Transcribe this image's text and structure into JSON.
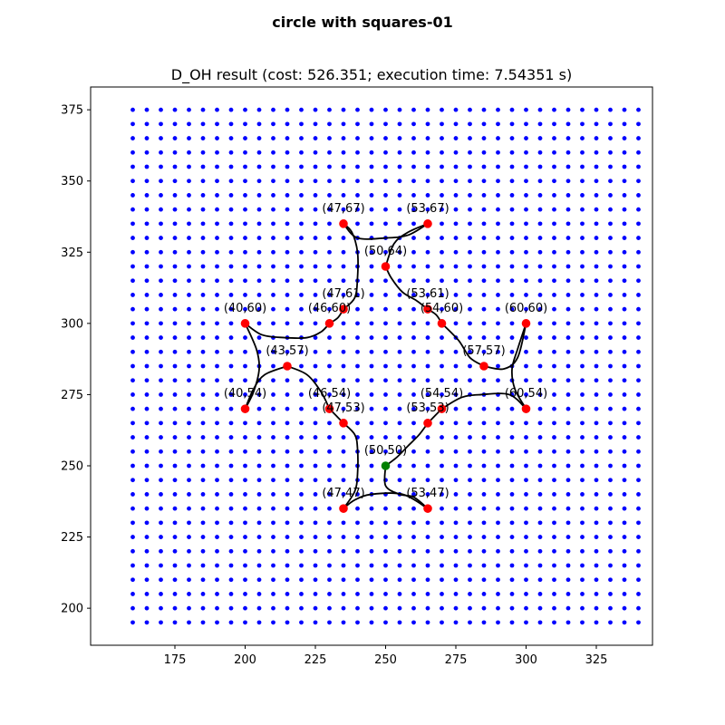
{
  "figure": {
    "suptitle": "circle with squares-01",
    "title": "D_OH result (cost: 526.351; execution time: 7.54351 s)"
  },
  "colors": {
    "grid_points": "#0000ff",
    "targets": "#ff0000",
    "start": "#008000",
    "path": "#000000",
    "axes": "#000000",
    "background": "#ffffff"
  },
  "chart_data": {
    "type": "scatter",
    "xlim": [
      145,
      345
    ],
    "ylim": [
      187,
      383
    ],
    "xticks": [
      175,
      200,
      225,
      250,
      275,
      300,
      325
    ],
    "yticks": [
      200,
      225,
      250,
      275,
      300,
      325,
      350,
      375
    ],
    "xtick_labels": [
      "175",
      "200",
      "225",
      "250",
      "275",
      "300",
      "325"
    ],
    "ytick_labels": [
      "200",
      "225",
      "250",
      "275",
      "300",
      "325",
      "350",
      "375"
    ],
    "grid_points": {
      "x_start": 160,
      "x_end": 340,
      "x_step": 5,
      "y_start": 195,
      "y_end": 375,
      "y_step": 5
    },
    "start_point": {
      "label": "(50,50)",
      "x": 250,
      "y": 250
    },
    "target_points": [
      {
        "label": "(47,67)",
        "x": 235,
        "y": 335
      },
      {
        "label": "(53,67)",
        "x": 265,
        "y": 335
      },
      {
        "label": "(50,64)",
        "x": 250,
        "y": 320
      },
      {
        "label": "(47,61)",
        "x": 235,
        "y": 305
      },
      {
        "label": "(46,60)",
        "x": 230,
        "y": 300
      },
      {
        "label": "(53,61)",
        "x": 265,
        "y": 305
      },
      {
        "label": "(54,60)",
        "x": 270,
        "y": 300
      },
      {
        "label": "(40,60)",
        "x": 200,
        "y": 300
      },
      {
        "label": "(60,60)",
        "x": 300,
        "y": 300
      },
      {
        "label": "(43,57)",
        "x": 215,
        "y": 285
      },
      {
        "label": "(57,57)",
        "x": 285,
        "y": 285
      },
      {
        "label": "(40,54)",
        "x": 200,
        "y": 270
      },
      {
        "label": "(46,54)",
        "x": 230,
        "y": 270
      },
      {
        "label": "(47,53)",
        "x": 235,
        "y": 265
      },
      {
        "label": "(53,53)",
        "x": 265,
        "y": 265
      },
      {
        "label": "(54,54)",
        "x": 270,
        "y": 270
      },
      {
        "label": "(60,54)",
        "x": 300,
        "y": 270
      },
      {
        "label": "(47,47)",
        "x": 235,
        "y": 235
      },
      {
        "label": "(53,47)",
        "x": 265,
        "y": 235
      }
    ],
    "path_segments": [
      [
        [
          250,
          250
        ],
        [
          250,
          243
        ],
        [
          255,
          240
        ],
        [
          260,
          239
        ],
        [
          265,
          235
        ]
      ],
      [
        [
          265,
          235
        ],
        [
          256,
          240
        ],
        [
          245,
          240
        ],
        [
          239,
          238
        ],
        [
          235,
          235
        ]
      ],
      [
        [
          235,
          235
        ],
        [
          239,
          241
        ],
        [
          240,
          247
        ],
        [
          240,
          256
        ],
        [
          239,
          261
        ],
        [
          235,
          265
        ]
      ],
      [
        [
          235,
          265
        ],
        [
          232,
          268
        ],
        [
          230,
          270
        ]
      ],
      [
        [
          230,
          270
        ],
        [
          227,
          276
        ],
        [
          222,
          282
        ],
        [
          215,
          285
        ]
      ],
      [
        [
          215,
          285
        ],
        [
          207,
          282
        ],
        [
          203,
          277
        ],
        [
          200,
          270
        ]
      ],
      [
        [
          200,
          270
        ],
        [
          203,
          276
        ],
        [
          205,
          284
        ],
        [
          204,
          291
        ],
        [
          200,
          300
        ]
      ],
      [
        [
          200,
          300
        ],
        [
          206,
          296
        ],
        [
          214,
          295
        ],
        [
          222,
          295
        ],
        [
          227,
          297
        ],
        [
          230,
          300
        ]
      ],
      [
        [
          230,
          300
        ],
        [
          233,
          302
        ],
        [
          235,
          305
        ]
      ],
      [
        [
          235,
          305
        ],
        [
          239,
          309
        ],
        [
          240,
          316
        ],
        [
          240,
          325
        ],
        [
          238,
          332
        ],
        [
          235,
          335
        ]
      ],
      [
        [
          235,
          335
        ],
        [
          240,
          330
        ],
        [
          250,
          330
        ],
        [
          258,
          331
        ],
        [
          265,
          335
        ]
      ],
      [
        [
          265,
          335
        ],
        [
          258,
          332
        ],
        [
          253,
          328
        ],
        [
          250,
          320
        ]
      ],
      [
        [
          250,
          320
        ],
        [
          252,
          316
        ],
        [
          256,
          311
        ],
        [
          261,
          308
        ],
        [
          265,
          305
        ]
      ],
      [
        [
          265,
          305
        ],
        [
          268,
          303
        ],
        [
          270,
          300
        ]
      ],
      [
        [
          270,
          300
        ],
        [
          276,
          294
        ],
        [
          280,
          288
        ],
        [
          285,
          285
        ]
      ],
      [
        [
          285,
          285
        ],
        [
          292,
          284
        ],
        [
          297,
          288
        ],
        [
          300,
          300
        ]
      ],
      [
        [
          300,
          300
        ],
        [
          297,
          291
        ],
        [
          295,
          284
        ],
        [
          296,
          277
        ],
        [
          300,
          270
        ]
      ],
      [
        [
          300,
          270
        ],
        [
          294,
          275
        ],
        [
          284,
          275
        ],
        [
          277,
          274
        ],
        [
          270,
          270
        ]
      ],
      [
        [
          270,
          270
        ],
        [
          268,
          268
        ],
        [
          265,
          265
        ]
      ],
      [
        [
          265,
          265
        ],
        [
          262,
          261
        ],
        [
          258,
          257
        ],
        [
          254,
          253
        ],
        [
          250,
          250
        ]
      ]
    ]
  }
}
